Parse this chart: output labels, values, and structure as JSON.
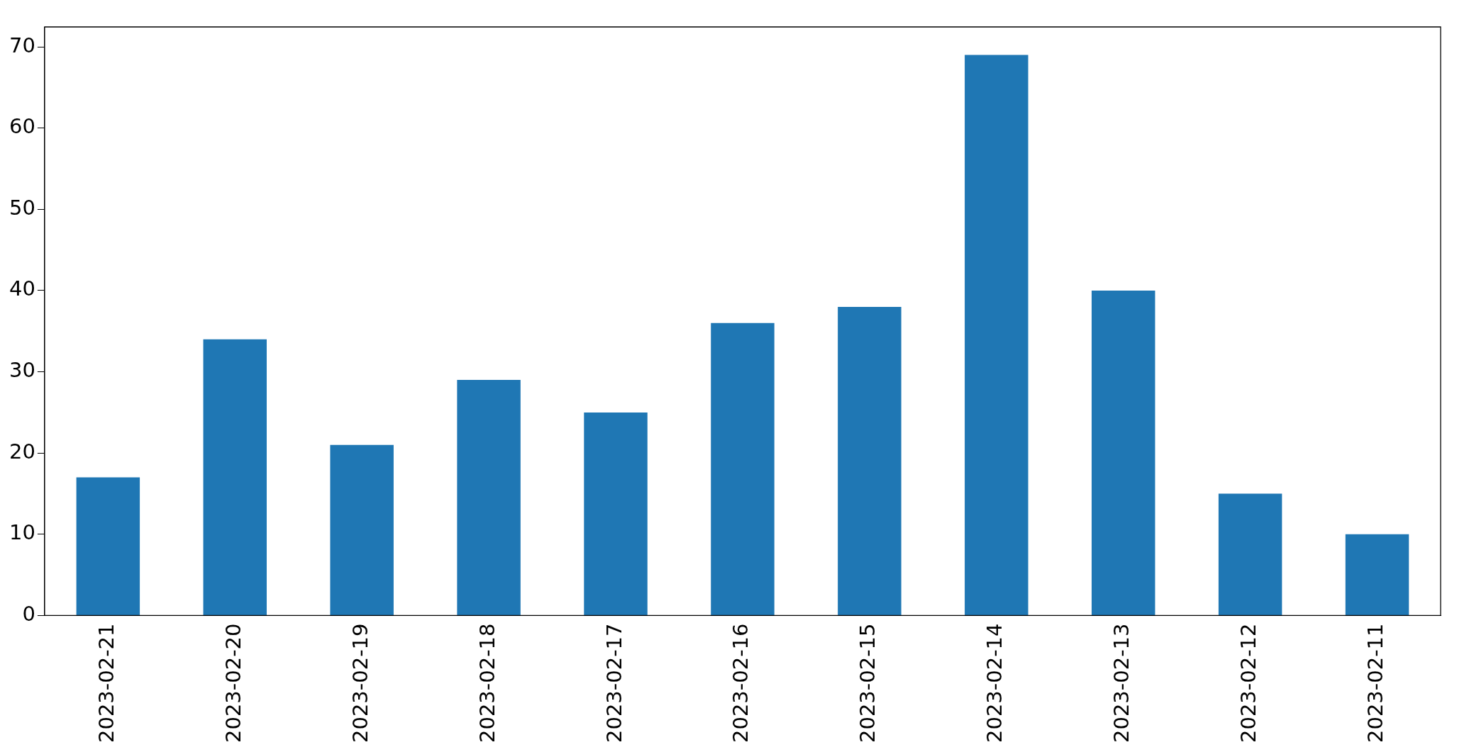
{
  "chart_data": {
    "type": "bar",
    "categories": [
      "2023-02-21",
      "2023-02-20",
      "2023-02-19",
      "2023-02-18",
      "2023-02-17",
      "2023-02-16",
      "2023-02-15",
      "2023-02-14",
      "2023-02-13",
      "2023-02-12",
      "2023-02-11"
    ],
    "values": [
      17,
      34,
      21,
      29,
      25,
      36,
      38,
      69,
      40,
      15,
      10
    ],
    "color": "#1f77b4",
    "ylim": [
      0,
      72.45
    ],
    "yticks": [
      0,
      10,
      20,
      30,
      40,
      50,
      60,
      70
    ],
    "grid": false,
    "legend": false
  }
}
